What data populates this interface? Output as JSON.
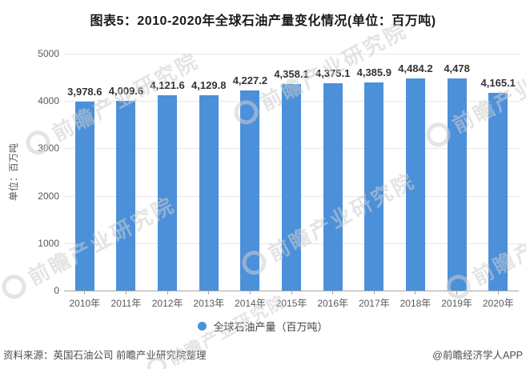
{
  "title": "图表5：2010-2020年全球石油产量变化情况(单位：百万吨)",
  "chart_data": {
    "type": "bar",
    "categories": [
      "2010年",
      "2011年",
      "2012年",
      "2013年",
      "2014年",
      "2015年",
      "2016年",
      "2017年",
      "2018年",
      "2019年",
      "2020年"
    ],
    "values": [
      3978.6,
      4009.6,
      4121.6,
      4129.8,
      4227.2,
      4358.1,
      4375.1,
      4385.9,
      4484.2,
      4478,
      4165.1
    ],
    "value_labels": [
      "3,978.6",
      "4,009.6",
      "4,121.6",
      "4,129.8",
      "4,227.2",
      "4,358.1",
      "4,375.1",
      "4,385.9",
      "4,484.2",
      "4,478",
      "4,165.1"
    ],
    "series_name": "全球石油产量（百万吨）",
    "ylabel": "单位：百万吨",
    "ylim": [
      0,
      5000
    ],
    "yticks": [
      0,
      1000,
      2000,
      3000,
      4000,
      5000
    ],
    "grid": true,
    "legend_position": "bottom",
    "bar_color": "#4B90D9"
  },
  "legend": {
    "label": "全球石油产量（百万吨）"
  },
  "footer": {
    "source": "资料来源：英国石油公司 前瞻产业研究院整理",
    "credit": "@前瞻经济学人APP"
  },
  "watermark": {
    "text": "前瞻产业研究院"
  }
}
